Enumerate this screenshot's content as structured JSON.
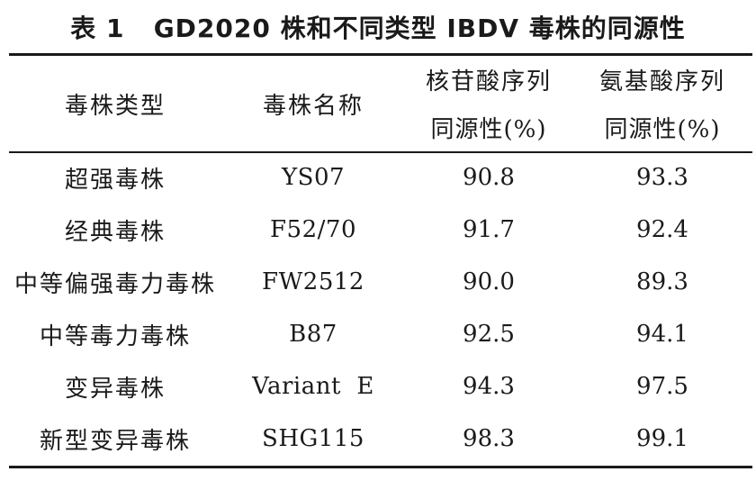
{
  "caption": {
    "label": "表 1",
    "title": "GD2020 株和不同类型 IBDV 毒株的同源性"
  },
  "table": {
    "headers": {
      "strain_type": "毒株类型",
      "strain_name": "毒株名称",
      "nucleotide_line1": "核苷酸序列",
      "nucleotide_line2": "同源性(%)",
      "amino_acid_line1": "氨基酸序列",
      "amino_acid_line2": "同源性(%)"
    },
    "rows": [
      {
        "type": "超强毒株",
        "name": "YS07",
        "nucleotide": "90.8",
        "amino_acid": "93.3"
      },
      {
        "type": "经典毒株",
        "name": "F52/70",
        "nucleotide": "91.7",
        "amino_acid": "92.4"
      },
      {
        "type": "中等偏强毒力毒株",
        "name": "FW2512",
        "nucleotide": "90.0",
        "amino_acid": "89.3"
      },
      {
        "type": "中等毒力毒株",
        "name": "B87",
        "nucleotide": "92.5",
        "amino_acid": "94.1"
      },
      {
        "type": "变异毒株",
        "name": "Variant  E",
        "nucleotide": "94.3",
        "amino_acid": "97.5"
      },
      {
        "type": "新型变异毒株",
        "name": "SHG115",
        "nucleotide": "98.3",
        "amino_acid": "99.1"
      }
    ]
  }
}
